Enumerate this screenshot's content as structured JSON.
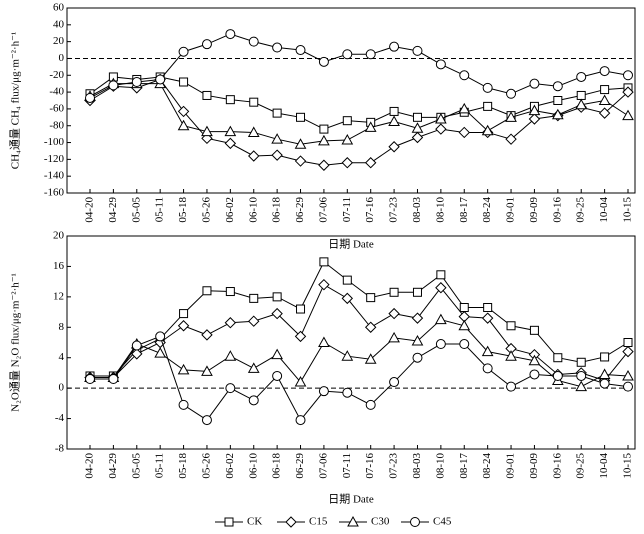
{
  "chart_data": [
    {
      "type": "line",
      "y_label": "CH₄通量 CH₄ flux/μg·m⁻²·h⁻¹",
      "x_label": "日期 Date",
      "categories": [
        "04-20",
        "04-29",
        "05-05",
        "05-11",
        "05-18",
        "05-26",
        "06-02",
        "06-10",
        "06-18",
        "06-29",
        "07-06",
        "07-11",
        "07-16",
        "07-23",
        "08-03",
        "08-10",
        "08-17",
        "08-24",
        "09-01",
        "09-09",
        "09-16",
        "09-25",
        "10-04",
        "10-15"
      ],
      "ylim": [
        -160,
        60
      ],
      "yticks": [
        -160,
        -140,
        -120,
        -100,
        -80,
        -60,
        -40,
        -20,
        0,
        20,
        40,
        60
      ],
      "hline": 0,
      "series": [
        {
          "marker": "square",
          "color": "#000000",
          "values": [
            -42,
            -22,
            -25,
            -22,
            -28,
            -44,
            -49,
            -52,
            -65,
            -70,
            -84,
            -74,
            -76,
            -63,
            -70,
            -70,
            -64,
            -57,
            -68,
            -57,
            -50,
            -44,
            -37,
            -35
          ]
        },
        {
          "marker": "diamond",
          "color": "#000000",
          "values": [
            -50,
            -33,
            -35,
            -25,
            -63,
            -95,
            -101,
            -116,
            -115,
            -122,
            -127,
            -124,
            -124,
            -105,
            -94,
            -84,
            -88,
            -88,
            -96,
            -72,
            -68,
            -58,
            -65,
            -40
          ]
        },
        {
          "marker": "triangle",
          "color": "#000000",
          "values": [
            -45,
            -30,
            -30,
            -30,
            -80,
            -87,
            -87,
            -88,
            -96,
            -102,
            -98,
            -97,
            -82,
            -75,
            -83,
            -72,
            -60,
            -86,
            -70,
            -62,
            -67,
            -55,
            -50,
            -68
          ]
        },
        {
          "marker": "circle",
          "color": "#000000",
          "values": [
            -47,
            -32,
            -28,
            -25,
            8,
            17,
            29,
            20,
            13,
            10,
            -4,
            5,
            5,
            14,
            9,
            -7,
            -20,
            -35,
            -42,
            -30,
            -33,
            -22,
            -15,
            -20
          ]
        }
      ]
    },
    {
      "type": "line",
      "y_label": "N₂O通量 N₂O flux/μg·m⁻²·h⁻¹",
      "x_label": "日期 Date",
      "categories": [
        "04-20",
        "04-29",
        "05-05",
        "05-11",
        "05-18",
        "05-26",
        "06-02",
        "06-10",
        "06-18",
        "06-29",
        "07-06",
        "07-11",
        "07-16",
        "07-23",
        "08-03",
        "08-10",
        "08-17",
        "08-24",
        "09-01",
        "09-09",
        "09-16",
        "09-25",
        "10-04",
        "10-15"
      ],
      "ylim": [
        -8,
        20
      ],
      "yticks": [
        -8,
        -4,
        0,
        4,
        8,
        12,
        16,
        20
      ],
      "hline": 0,
      "series": [
        {
          "name": "CK",
          "marker": "square",
          "color": "#000000",
          "values": [
            1.6,
            1.6,
            5.0,
            6.5,
            9.8,
            12.8,
            12.7,
            11.8,
            12.0,
            10.4,
            16.6,
            14.2,
            11.9,
            12.6,
            12.6,
            14.9,
            10.6,
            10.6,
            8.2,
            7.6,
            4.0,
            3.4,
            4.1,
            6.0
          ]
        },
        {
          "name": "C15",
          "marker": "diamond",
          "color": "#000000",
          "values": [
            1.4,
            1.4,
            4.5,
            6.0,
            8.2,
            7.0,
            8.6,
            8.8,
            9.8,
            6.8,
            13.6,
            11.8,
            8.0,
            9.8,
            9.2,
            13.2,
            9.4,
            9.2,
            5.2,
            4.4,
            1.8,
            2.0,
            1.0,
            4.8
          ]
        },
        {
          "name": "C30",
          "marker": "triangle",
          "color": "#000000",
          "values": [
            1.4,
            1.4,
            5.8,
            4.6,
            2.4,
            2.2,
            4.2,
            2.6,
            4.4,
            0.8,
            6.0,
            4.2,
            3.8,
            6.6,
            6.2,
            9.0,
            8.2,
            4.8,
            4.2,
            3.6,
            1.0,
            0.2,
            1.8,
            1.6
          ]
        },
        {
          "name": "C45",
          "marker": "circle",
          "color": "#000000",
          "values": [
            1.2,
            1.2,
            5.6,
            6.8,
            -2.2,
            -4.2,
            0.0,
            -1.6,
            1.6,
            -4.2,
            -0.4,
            -0.6,
            -2.2,
            0.8,
            4.0,
            5.8,
            5.8,
            2.6,
            0.2,
            1.8,
            1.6,
            1.6,
            0.6,
            0.2
          ]
        }
      ]
    }
  ]
}
